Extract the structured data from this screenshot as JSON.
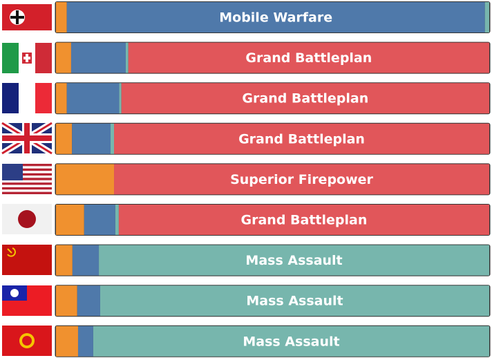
{
  "chart_data": {
    "type": "stacked-bar",
    "labels": [
      "Mobile Warfare",
      "Grand Battleplan",
      "Grand Battleplan",
      "Grand Battleplan",
      "Superior Firepower",
      "Grand Battleplan",
      "Mass Assault",
      "Mass Assault",
      "Mass Assault"
    ],
    "xlim": [
      0,
      100
    ],
    "series": [
      {
        "color": "#f0912f",
        "values": [
          2.5,
          3.5,
          2.5,
          3.7,
          13.4,
          6.5,
          3.8,
          4.9,
          5.1
        ]
      },
      {
        "color": "#4f79aa",
        "values": [
          96.5,
          12.6,
          12.1,
          8.9,
          0,
          7.2,
          6.1,
          5.3,
          3.5
        ]
      },
      {
        "color": "#77b6ad",
        "values": [
          1,
          0.6,
          0.5,
          0.8,
          0,
          0.8,
          90.1,
          89.8,
          91.4
        ]
      },
      {
        "color": "#e1565a",
        "values": [
          0,
          83.3,
          84.9,
          86.6,
          86.6,
          85.5,
          0,
          0,
          0
        ]
      }
    ]
  }
}
